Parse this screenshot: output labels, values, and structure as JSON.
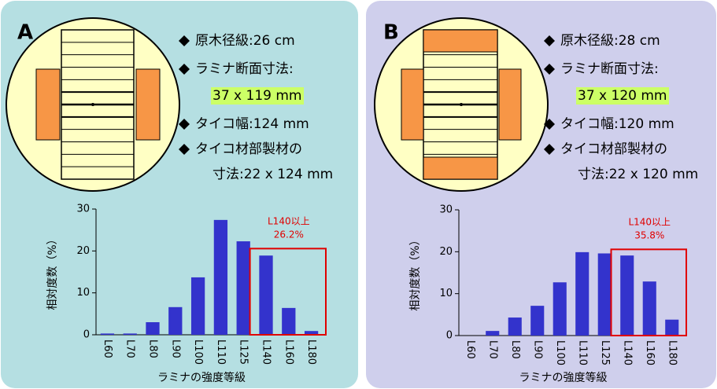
{
  "chart_data": [
    {
      "type": "bar",
      "panel_label": "A",
      "notes": [
        "原木径級:26 cm",
        "ラミナ断面寸法:",
        "37 x 119 mm",
        "タイコ幅:124 mm",
        "タイコ材部製材の",
        "寸法:22 x 124 mm"
      ],
      "categories": [
        "L60",
        "L70",
        "L80",
        "L90",
        "L100",
        "L110",
        "L125",
        "L140",
        "L160",
        "L180"
      ],
      "values": [
        0.3,
        0.3,
        3.0,
        6.6,
        13.7,
        27.4,
        22.3,
        18.9,
        6.4,
        0.9
      ],
      "color": "#3333cc",
      "ylim": [
        0,
        30
      ],
      "yticks": [
        0,
        10,
        20,
        30
      ],
      "y_label": "相対度数（%）",
      "x_label": "ラミナの強度等級",
      "annotation": [
        "L140以上",
        "26.2%"
      ]
    },
    {
      "type": "bar",
      "panel_label": "B",
      "notes": [
        "原木径級:28 cm",
        "ラミナ断面寸法:",
        "37 x 120 mm",
        "タイコ幅:120 mm",
        "タイコ材部製材の",
        "寸法:22 x 120 mm"
      ],
      "categories": [
        "L60",
        "L70",
        "L80",
        "L90",
        "L100",
        "L110",
        "L125",
        "L140",
        "L160",
        "L180"
      ],
      "values": [
        0,
        1.1,
        4.3,
        7.1,
        12.7,
        19.9,
        19.6,
        19.1,
        12.9,
        3.8
      ],
      "color": "#3333cc",
      "ylim": [
        0,
        30
      ],
      "yticks": [
        0,
        10,
        20,
        30
      ],
      "y_label": "相対度数（%）",
      "x_label": "ラミナの強度等級",
      "annotation": [
        "L140以上",
        "35.8%"
      ]
    }
  ]
}
